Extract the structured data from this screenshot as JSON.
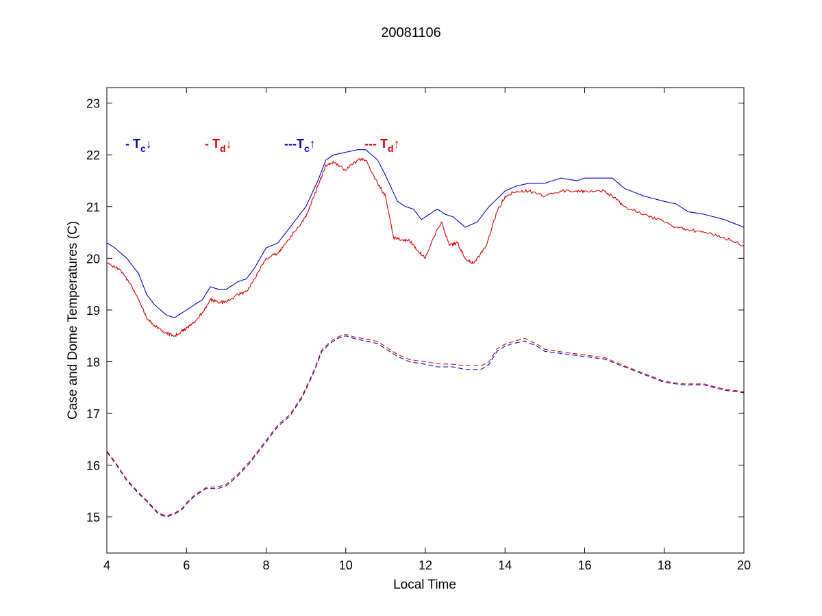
{
  "chart_data": {
    "type": "line",
    "title": "20081106",
    "xlabel": "Local Time",
    "ylabel": "Case and Dome Temperatures (C)",
    "xlim": [
      4,
      20
    ],
    "ylim": [
      14.3,
      23.3
    ],
    "xticks": [
      4,
      6,
      8,
      10,
      12,
      14,
      16,
      18,
      20
    ],
    "yticks": [
      15,
      16,
      17,
      18,
      19,
      20,
      21,
      22,
      23
    ],
    "grid": false,
    "colors": {
      "blue": "#0000cc",
      "red": "#dd0000"
    },
    "annotations": [
      {
        "prefix": "- ",
        "sym": "T",
        "sub": "c",
        "arrow": "↓",
        "color": "#0000cc"
      },
      {
        "prefix": "- ",
        "sym": "T",
        "sub": "d",
        "arrow": "↓",
        "color": "#dd0000"
      },
      {
        "prefix": "---",
        "sym": "T",
        "sub": "c",
        "arrow": "↑",
        "color": "#0000cc"
      },
      {
        "prefix": "--- ",
        "sym": "T",
        "sub": "d",
        "arrow": "↑",
        "color": "#dd0000"
      }
    ],
    "series": [
      {
        "style": "solid",
        "color": "#0000cc",
        "noise": 0.0,
        "x": [
          4.0,
          4.2,
          4.5,
          4.8,
          5.0,
          5.2,
          5.5,
          5.7,
          5.9,
          6.0,
          6.2,
          6.4,
          6.6,
          6.8,
          7.0,
          7.3,
          7.5,
          7.7,
          8.0,
          8.3,
          8.5,
          8.8,
          9.0,
          9.3,
          9.5,
          9.7,
          10.0,
          10.3,
          10.5,
          10.8,
          11.0,
          11.3,
          11.5,
          11.7,
          11.9,
          12.1,
          12.3,
          12.5,
          12.7,
          13.0,
          13.3,
          13.6,
          14.0,
          14.3,
          14.6,
          15.0,
          15.4,
          15.8,
          16.0,
          16.4,
          16.7,
          17.0,
          17.5,
          18.0,
          18.3,
          18.6,
          19.0,
          19.5,
          20.0
        ],
        "y": [
          20.3,
          20.2,
          20.0,
          19.7,
          19.3,
          19.1,
          18.9,
          18.85,
          18.95,
          19.0,
          19.1,
          19.2,
          19.45,
          19.4,
          19.4,
          19.55,
          19.6,
          19.8,
          20.2,
          20.3,
          20.5,
          20.8,
          21.0,
          21.5,
          21.9,
          22.0,
          22.05,
          22.1,
          22.1,
          21.9,
          21.6,
          21.1,
          21.0,
          20.95,
          20.75,
          20.85,
          20.95,
          20.85,
          20.8,
          20.6,
          20.7,
          21.0,
          21.3,
          21.4,
          21.45,
          21.45,
          21.55,
          21.5,
          21.55,
          21.55,
          21.55,
          21.35,
          21.2,
          21.1,
          21.05,
          20.9,
          20.85,
          20.75,
          20.6
        ]
      },
      {
        "style": "solid",
        "color": "#dd0000",
        "noise": 0.06,
        "x": [
          4.0,
          4.3,
          4.6,
          4.8,
          5.0,
          5.2,
          5.5,
          5.7,
          5.9,
          6.0,
          6.2,
          6.4,
          6.6,
          6.8,
          7.0,
          7.3,
          7.5,
          7.7,
          8.0,
          8.3,
          8.5,
          8.8,
          9.0,
          9.3,
          9.5,
          9.7,
          10.0,
          10.3,
          10.5,
          10.8,
          11.0,
          11.2,
          11.4,
          11.6,
          11.8,
          12.0,
          12.2,
          12.4,
          12.6,
          12.8,
          13.0,
          13.2,
          13.5,
          13.8,
          14.0,
          14.3,
          14.6,
          15.0,
          15.4,
          15.8,
          16.0,
          16.5,
          16.7,
          17.0,
          17.5,
          18.0,
          18.3,
          18.6,
          19.0,
          19.5,
          20.0
        ],
        "y": [
          19.9,
          19.8,
          19.5,
          19.2,
          18.85,
          18.7,
          18.55,
          18.5,
          18.6,
          18.65,
          18.75,
          18.95,
          19.2,
          19.15,
          19.15,
          19.3,
          19.35,
          19.6,
          20.0,
          20.1,
          20.3,
          20.6,
          20.8,
          21.4,
          21.8,
          21.85,
          21.7,
          21.9,
          21.9,
          21.45,
          21.2,
          20.4,
          20.35,
          20.35,
          20.15,
          20.0,
          20.4,
          20.7,
          20.25,
          20.3,
          20.0,
          19.9,
          20.2,
          20.9,
          21.2,
          21.3,
          21.3,
          21.2,
          21.3,
          21.3,
          21.3,
          21.3,
          21.2,
          21.0,
          20.85,
          20.7,
          20.6,
          20.55,
          20.5,
          20.4,
          20.25
        ]
      },
      {
        "style": "dashed",
        "color": "#0000cc",
        "noise": 0.0,
        "x": [
          4.0,
          4.2,
          4.5,
          4.8,
          5.0,
          5.3,
          5.5,
          5.7,
          5.9,
          6.0,
          6.2,
          6.5,
          6.8,
          7.0,
          7.3,
          7.6,
          8.0,
          8.3,
          8.6,
          8.9,
          9.2,
          9.4,
          9.6,
          9.8,
          10.0,
          10.2,
          10.5,
          10.8,
          11.0,
          11.3,
          11.6,
          12.0,
          12.3,
          12.7,
          13.0,
          13.4,
          13.6,
          13.8,
          14.0,
          14.2,
          14.5,
          14.8,
          15.0,
          15.5,
          16.0,
          16.5,
          17.0,
          17.5,
          18.0,
          18.5,
          19.0,
          19.5,
          20.0
        ],
        "y": [
          16.25,
          16.05,
          15.7,
          15.45,
          15.3,
          15.05,
          15.0,
          15.05,
          15.15,
          15.25,
          15.4,
          15.55,
          15.55,
          15.6,
          15.8,
          16.05,
          16.45,
          16.75,
          16.95,
          17.3,
          17.8,
          18.2,
          18.35,
          18.45,
          18.5,
          18.45,
          18.4,
          18.35,
          18.25,
          18.1,
          18.0,
          17.95,
          17.9,
          17.9,
          17.85,
          17.85,
          17.95,
          18.2,
          18.3,
          18.35,
          18.4,
          18.3,
          18.2,
          18.15,
          18.1,
          18.05,
          17.9,
          17.75,
          17.6,
          17.55,
          17.55,
          17.45,
          17.4
        ]
      },
      {
        "style": "dashed",
        "color": "#dd0000",
        "noise": 0.0,
        "x": [
          4.0,
          4.2,
          4.5,
          4.8,
          5.0,
          5.3,
          5.5,
          5.7,
          5.9,
          6.0,
          6.2,
          6.5,
          6.8,
          7.0,
          7.3,
          7.6,
          8.0,
          8.3,
          8.6,
          8.9,
          9.2,
          9.4,
          9.6,
          9.8,
          10.0,
          10.2,
          10.5,
          10.8,
          11.0,
          11.3,
          11.6,
          12.0,
          12.3,
          12.7,
          13.0,
          13.4,
          13.6,
          13.8,
          14.0,
          14.2,
          14.5,
          14.8,
          15.0,
          15.5,
          16.0,
          16.5,
          17.0,
          17.5,
          18.0,
          18.5,
          19.0,
          19.5,
          20.0
        ],
        "y": [
          16.27,
          16.07,
          15.72,
          15.47,
          15.32,
          15.07,
          15.02,
          15.07,
          15.17,
          15.27,
          15.42,
          15.57,
          15.58,
          15.63,
          15.83,
          16.08,
          16.48,
          16.78,
          16.98,
          17.33,
          17.83,
          18.23,
          18.38,
          18.48,
          18.53,
          18.48,
          18.44,
          18.39,
          18.29,
          18.14,
          18.04,
          18.0,
          17.96,
          17.95,
          17.92,
          17.92,
          18.0,
          18.25,
          18.34,
          18.39,
          18.45,
          18.34,
          18.24,
          18.18,
          18.13,
          18.08,
          17.92,
          17.77,
          17.62,
          17.57,
          17.57,
          17.47,
          17.42
        ]
      }
    ]
  }
}
